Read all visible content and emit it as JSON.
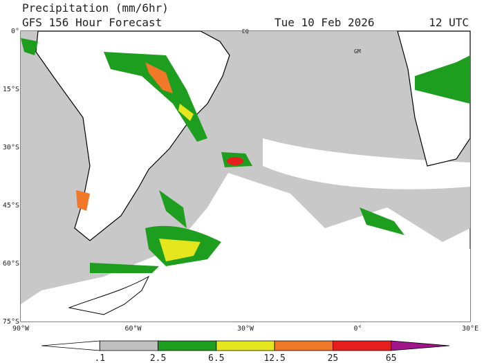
{
  "header": {
    "title": "Precipitation (mm/6hr)",
    "subtitle": "GFS 156 Hour Forecast",
    "date": "Tue 10 Feb 2026",
    "time": "12 UTC"
  },
  "map": {
    "lat_labels": [
      "0°",
      "15°S",
      "30°S",
      "45°S",
      "60°S",
      "75°S"
    ],
    "lon_labels": [
      "90°W",
      "60°W",
      "30°W",
      "0°",
      "30°E"
    ],
    "place_labels": [
      "EQ",
      "GM"
    ]
  },
  "colorbar": {
    "labels": [
      ".1",
      "2.5",
      "6.5",
      "12.5",
      "25",
      "65"
    ],
    "colors": [
      "#ffffff",
      "#c0c0c0",
      "#1e9e1e",
      "#e6e61e",
      "#f07828",
      "#e61e1e",
      "#a0148c"
    ]
  }
}
